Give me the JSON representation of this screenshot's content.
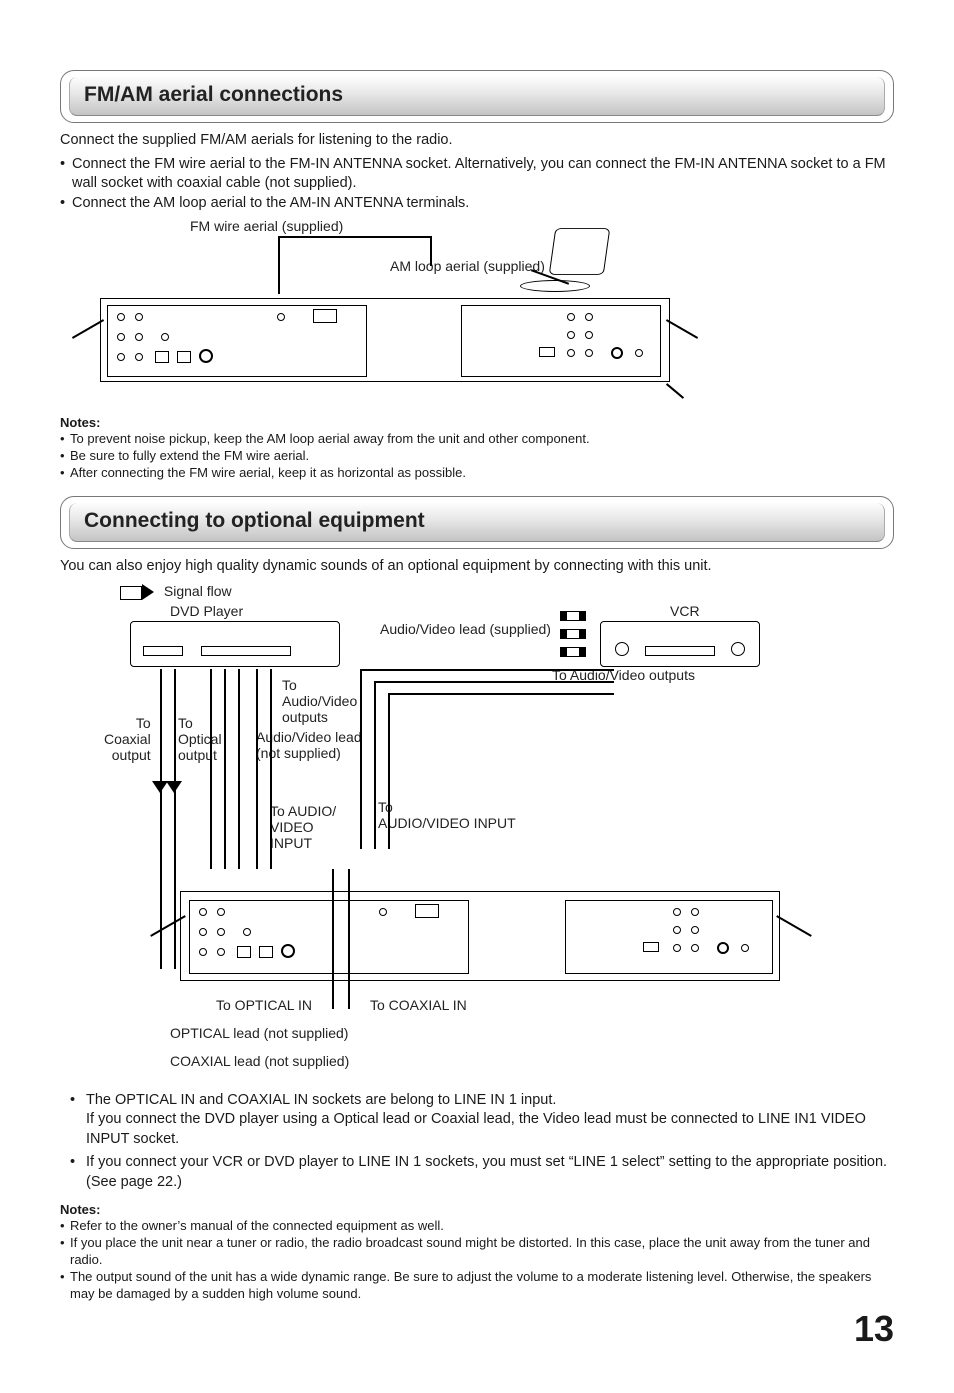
{
  "section1": {
    "title": "FM/AM aerial connections",
    "intro": "Connect the supplied FM/AM aerials for listening to the radio.",
    "bullets": [
      "Connect the FM wire aerial to the FM-IN ANTENNA socket. Alternatively, you can connect the FM-IN ANTENNA socket to a FM wall socket with coaxial cable (not supplied).",
      "Connect the AM loop aerial to the AM-IN ANTENNA terminals."
    ],
    "fig_labels": {
      "fm_wire": "FM wire aerial (supplied)",
      "am_loop": "AM loop aerial (supplied)"
    },
    "notes_heading": "Notes:",
    "notes": [
      "To prevent noise pickup, keep the AM loop aerial away from the unit and other component.",
      "Be sure to fully extend the FM wire aerial.",
      "After connecting the FM wire aerial, keep it as horizontal as possible."
    ]
  },
  "section2": {
    "title": "Connecting to optional equipment",
    "intro": "You can also enjoy high quality dynamic sounds of an optional equipment by connecting with this unit.",
    "fig_labels": {
      "signal_flow": "Signal flow",
      "dvd": "DVD Player",
      "vcr": "VCR",
      "av_lead_supplied": "Audio/Video lead (supplied)",
      "to_av_outputs_r": "To Audio/Video outputs",
      "to_av_outputs_l": "To\nAudio/Video\noutputs",
      "to_coax": "To\nCoaxial\noutput",
      "to_optical": "To\nOptical\noutput",
      "av_lead_not": "Audio/Video lead\n(not supplied)",
      "to_audio_video_input_l": "To AUDIO/\nVIDEO\nINPUT",
      "to_audio_video_input_r": "To\nAUDIO/VIDEO INPUT",
      "to_optical_in": "To OPTICAL IN",
      "to_coax_in": "To COAXIAL IN",
      "optical_lead": "OPTICAL lead (not supplied)",
      "coaxial_lead": "COAXIAL lead (not supplied)"
    },
    "post_bullets": [
      "The OPTICAL IN and COAXIAL IN sockets are belong to LINE IN 1 input.\nIf you connect the DVD player using a Optical lead or Coaxial lead, the Video lead must be connected to LINE IN1 VIDEO INPUT socket.",
      "If you connect your VCR or DVD player to LINE IN 1 sockets, you must set “LINE 1 select” setting to the appropriate position. (See page 22.)"
    ],
    "notes_heading": "Notes:",
    "notes": [
      "Refer to the owner’s manual of the connected equipment as well.",
      "If you place the unit near a tuner or radio, the radio broadcast sound might be distorted. In this case, place the unit away from the tuner and radio.",
      "The output sound of the unit has a wide dynamic range. Be sure to adjust the volume to a moderate listening level. Otherwise, the speakers may be damaged by a sudden high volume sound."
    ]
  },
  "page_number": "13",
  "colors": {
    "text": "#1a1a1a",
    "grad_top": "#fdfdfd",
    "grad_bot": "#c4c4c4",
    "border": "#777"
  }
}
